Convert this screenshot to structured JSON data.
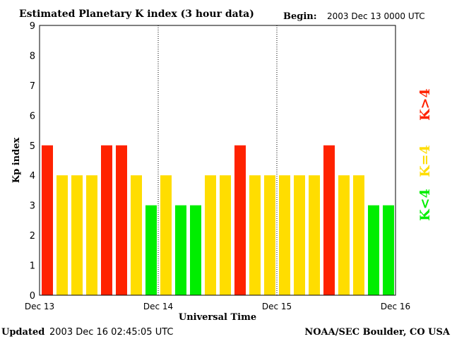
{
  "chart_data": {
    "type": "bar",
    "title": "Estimated Planetary K index (3 hour data)",
    "begin_label": "Begin:",
    "begin_value": "2003 Dec 13 0000 UTC",
    "xlabel": "Universal Time",
    "ylabel": "Kp index",
    "ylim": [
      0,
      9
    ],
    "yticks": [
      "0",
      "1",
      "2",
      "3",
      "4",
      "5",
      "6",
      "7",
      "8",
      "9"
    ],
    "xtick_labels": [
      "Dec 13",
      "Dec 14",
      "Dec 15",
      "Dec 16"
    ],
    "grid": "dotted vertical lines at day boundaries",
    "values": [
      5,
      4,
      4,
      4,
      5,
      5,
      4,
      3,
      4,
      3,
      3,
      4,
      4,
      5,
      4,
      4,
      4,
      4,
      4,
      5,
      4,
      4,
      3,
      3
    ],
    "legend": [
      {
        "label": "K>4",
        "color": "#ff2200"
      },
      {
        "label": "K=4",
        "color": "#ffdd00"
      },
      {
        "label": "K<4",
        "color": "#00ee00"
      }
    ],
    "legend_placement": "right",
    "colors": {
      "above": "#ff2200",
      "equal": "#ffdd00",
      "below": "#00ee00"
    }
  },
  "footer": {
    "updated_label": "Updated",
    "updated_value": "2003 Dec 16 02:45:05 UTC",
    "source": "NOAA/SEC Boulder, CO USA"
  }
}
